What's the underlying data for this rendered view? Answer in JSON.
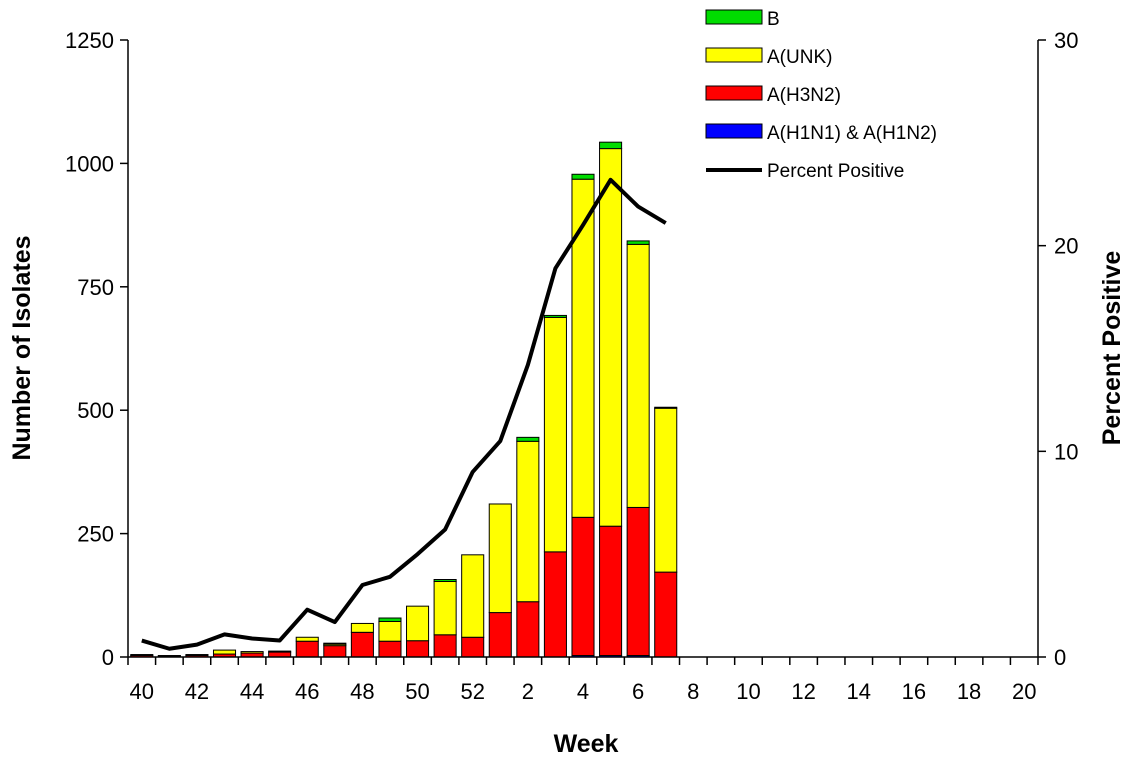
{
  "chart_data": {
    "type": "bar",
    "stacked": true,
    "xlabel": "Week",
    "ylabel": "Number of Isolates",
    "y2label": "Percent Positive",
    "ylim": [
      0,
      1250
    ],
    "y2lim": [
      0,
      30
    ],
    "yticks": [
      0,
      250,
      500,
      750,
      1000,
      1250
    ],
    "y2ticks": [
      0,
      10,
      20,
      30
    ],
    "categories": [
      "40",
      "41",
      "42",
      "43",
      "44",
      "45",
      "46",
      "47",
      "48",
      "49",
      "50",
      "51",
      "52",
      "1",
      "2",
      "3",
      "4",
      "5",
      "6",
      "7",
      "8",
      "9",
      "10",
      "11",
      "12",
      "13",
      "14",
      "15",
      "16",
      "17",
      "18",
      "19",
      "20"
    ],
    "tick_labels_shown": [
      "40",
      "42",
      "44",
      "46",
      "48",
      "50",
      "52",
      "2",
      "4",
      "6",
      "8",
      "10",
      "12",
      "14",
      "16",
      "18",
      "20"
    ],
    "grid": false,
    "legend_position": "top-right",
    "series": [
      {
        "name": "A(H1N1) & A(H1N2)",
        "color": "#0000ff",
        "values": [
          0,
          0,
          0,
          0,
          0,
          0,
          0,
          0,
          0,
          0,
          0,
          0,
          0,
          0,
          0,
          0,
          3,
          3,
          3,
          0,
          null,
          null,
          null,
          null,
          null,
          null,
          null,
          null,
          null,
          null,
          null,
          null,
          null
        ]
      },
      {
        "name": "A(H3N2)",
        "color": "#ff0000",
        "values": [
          3,
          2,
          3,
          6,
          8,
          10,
          32,
          23,
          50,
          32,
          33,
          45,
          40,
          90,
          112,
          213,
          280,
          262,
          300,
          172,
          null,
          null,
          null,
          null,
          null,
          null,
          null,
          null,
          null,
          null,
          null,
          null,
          null
        ]
      },
      {
        "name": "A(UNK)",
        "color": "#ffff00",
        "values": [
          2,
          1,
          2,
          8,
          3,
          2,
          8,
          3,
          18,
          40,
          70,
          108,
          167,
          220,
          325,
          475,
          685,
          765,
          533,
          332,
          null,
          null,
          null,
          null,
          null,
          null,
          null,
          null,
          null,
          null,
          null,
          null,
          null
        ]
      },
      {
        "name": "B",
        "color": "#00dd00",
        "values": [
          0,
          0,
          0,
          0,
          0,
          0,
          0,
          2,
          0,
          7,
          0,
          4,
          0,
          0,
          8,
          4,
          10,
          13,
          7,
          2,
          null,
          null,
          null,
          null,
          null,
          null,
          null,
          null,
          null,
          null,
          null,
          null,
          null
        ]
      }
    ],
    "line_series": {
      "name": "Percent Positive",
      "color": "#000000",
      "axis": "right",
      "values": [
        0.8,
        0.4,
        0.6,
        1.1,
        0.9,
        0.8,
        2.3,
        1.7,
        3.5,
        3.9,
        5.0,
        6.2,
        9.0,
        10.5,
        14.2,
        18.9,
        21.0,
        23.2,
        21.9,
        21.1,
        null,
        null,
        null,
        null,
        null,
        null,
        null,
        null,
        null,
        null,
        null,
        null,
        null
      ]
    },
    "legend_order": [
      "B",
      "A(UNK)",
      "A(H3N2)",
      "A(H1N1) & A(H1N2)",
      "Percent Positive"
    ]
  }
}
